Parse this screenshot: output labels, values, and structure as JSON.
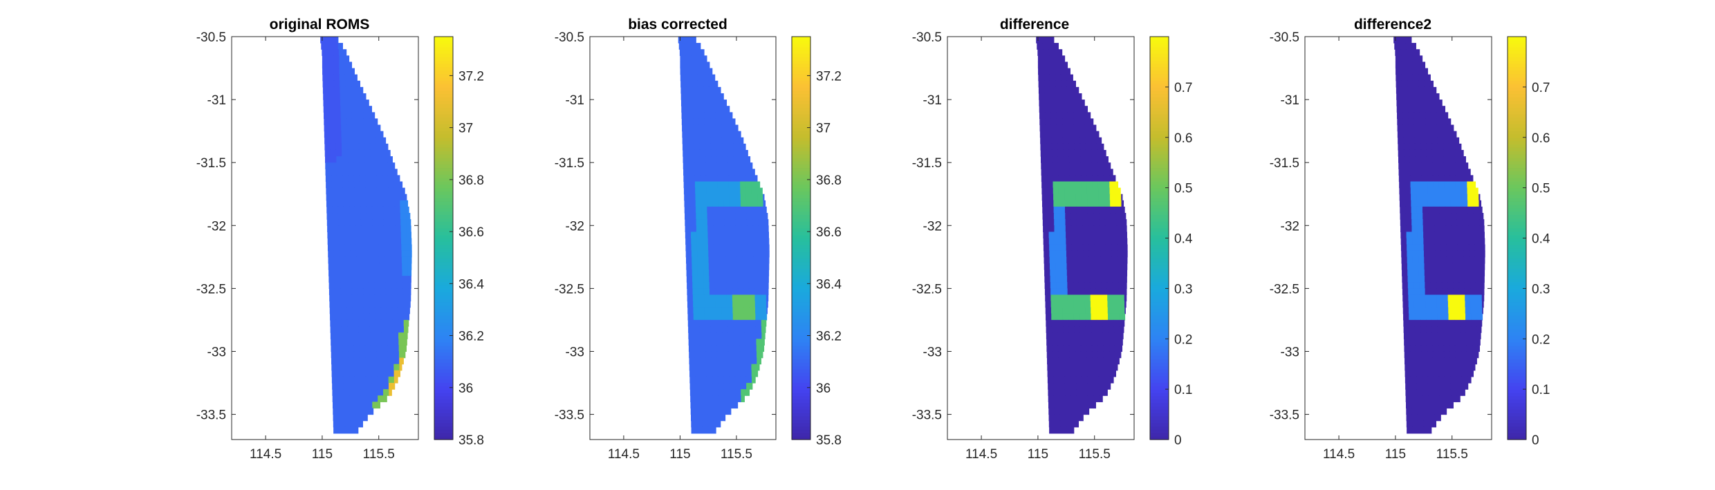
{
  "figure": {
    "background": "#ffffff",
    "colormap": "parula",
    "colormap_stops": [
      "#3e26a8",
      "#4443f0",
      "#2e83f4",
      "#1aa9dd",
      "#27bf9d",
      "#6ac75e",
      "#c4bd2d",
      "#fbc034",
      "#f8fa0d"
    ],
    "axes_color": "#262626"
  },
  "chart_data": [
    {
      "type": "heatmap",
      "title": "original ROMS",
      "xlim": [
        114.2,
        115.85
      ],
      "ylim": [
        -33.7,
        -30.5
      ],
      "xticks": [
        114.5,
        115,
        115.5
      ],
      "xtick_labels": [
        "114.5",
        "115",
        "115.5"
      ],
      "yticks": [
        -30.5,
        -31,
        -31.5,
        -32,
        -32.5,
        -33,
        -33.5
      ],
      "ytick_labels": [
        "-30.5",
        "-31",
        "-31.5",
        "-32",
        "-32.5",
        "-33",
        "-33.5"
      ],
      "colorbar": {
        "limits": [
          35.8,
          37.35
        ],
        "ticks": [
          35.8,
          36,
          36.2,
          36.4,
          36.6,
          36.8,
          37,
          37.2
        ],
        "tick_labels": [
          "35.8",
          "36",
          "36.2",
          "36.4",
          "36.6",
          "36.8",
          "37",
          "37.2"
        ]
      },
      "field": {
        "background_value": 36.1,
        "features": [
          {
            "region": "north-west inner coast",
            "value": 36.05
          },
          {
            "region": "east margin around -32",
            "value": 36.2
          },
          {
            "region": "south-east coast -32.8 to -33.4",
            "value": 36.8,
            "peak_value": 37.1
          }
        ]
      },
      "grid": false,
      "legend": "colorbar right"
    },
    {
      "type": "heatmap",
      "title": "bias corrected",
      "xlim": [
        114.2,
        115.85
      ],
      "ylim": [
        -33.7,
        -30.5
      ],
      "xticks": [
        114.5,
        115,
        115.5
      ],
      "xtick_labels": [
        "114.5",
        "115",
        "115.5"
      ],
      "yticks": [
        -30.5,
        -31,
        -31.5,
        -32,
        -32.5,
        -33,
        -33.5
      ],
      "ytick_labels": [
        "-30.5",
        "-31",
        "-31.5",
        "-32",
        "-32.5",
        "-33",
        "-33.5"
      ],
      "colorbar": {
        "limits": [
          35.8,
          37.35
        ],
        "ticks": [
          35.8,
          36,
          36.2,
          36.4,
          36.6,
          36.8,
          37,
          37.2
        ],
        "tick_labels": [
          "35.8",
          "36",
          "36.2",
          "36.4",
          "36.6",
          "36.8",
          "37",
          "37.2"
        ]
      },
      "field": {
        "background_value": 36.1,
        "features": [
          {
            "region": "corrected ring at about -31.65 to -32.7",
            "value": 36.3
          },
          {
            "region": "north-east corner of ring",
            "value": 36.65
          },
          {
            "region": "south-east corner of ring",
            "value": 36.75
          },
          {
            "region": "south-east coast",
            "value": 36.7
          }
        ]
      },
      "grid": false,
      "legend": "colorbar right"
    },
    {
      "type": "heatmap",
      "title": "difference",
      "xlim": [
        114.2,
        115.85
      ],
      "ylim": [
        -33.7,
        -30.5
      ],
      "xticks": [
        114.5,
        115,
        115.5
      ],
      "xtick_labels": [
        "114.5",
        "115",
        "115.5"
      ],
      "yticks": [
        -30.5,
        -31,
        -31.5,
        -32,
        -32.5,
        -33,
        -33.5
      ],
      "ytick_labels": [
        "-30.5",
        "-31",
        "-31.5",
        "-32",
        "-32.5",
        "-33",
        "-33.5"
      ],
      "colorbar": {
        "limits": [
          0,
          0.8
        ],
        "ticks": [
          0,
          0.1,
          0.2,
          0.3,
          0.4,
          0.5,
          0.6,
          0.7
        ],
        "tick_labels": [
          "0",
          "0.1",
          "0.2",
          "0.3",
          "0.4",
          "0.5",
          "0.6",
          "0.7"
        ]
      },
      "field": {
        "background_value": 0,
        "features": [
          {
            "region": "ring",
            "value": 0.2
          },
          {
            "region": "ring north edge",
            "value": 0.45
          },
          {
            "region": "ring south edge",
            "value": 0.45
          },
          {
            "region": "north-east hotspot",
            "value": 0.8
          },
          {
            "region": "south-east hotspot",
            "value": 0.8
          }
        ]
      },
      "grid": false,
      "legend": "colorbar right"
    },
    {
      "type": "heatmap",
      "title": "difference2",
      "xlim": [
        114.2,
        115.85
      ],
      "ylim": [
        -33.7,
        -30.5
      ],
      "xticks": [
        114.5,
        115,
        115.5
      ],
      "xtick_labels": [
        "114.5",
        "115",
        "115.5"
      ],
      "yticks": [
        -30.5,
        -31,
        -31.5,
        -32,
        -32.5,
        -33,
        -33.5
      ],
      "ytick_labels": [
        "-30.5",
        "-31",
        "-31.5",
        "-32",
        "-32.5",
        "-33",
        "-33.5"
      ],
      "colorbar": {
        "limits": [
          0,
          0.8
        ],
        "ticks": [
          0,
          0.1,
          0.2,
          0.3,
          0.4,
          0.5,
          0.6,
          0.7
        ],
        "tick_labels": [
          "0",
          "0.1",
          "0.2",
          "0.3",
          "0.4",
          "0.5",
          "0.6",
          "0.7"
        ]
      },
      "field": {
        "background_value": 0,
        "features": [
          {
            "region": "ring",
            "value": 0.2
          },
          {
            "region": "north-east hotspot",
            "value": 0.8
          },
          {
            "region": "south-east hotspot",
            "value": 0.8
          }
        ]
      },
      "grid": false,
      "legend": "colorbar right"
    }
  ]
}
